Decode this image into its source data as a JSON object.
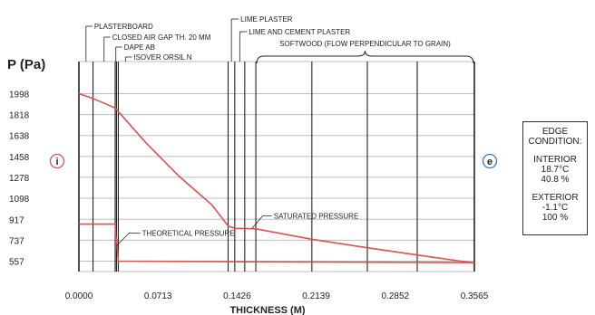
{
  "chart_data": {
    "type": "line",
    "ylabel": "P (Pa)",
    "xlabel": "THICKNESS (M)",
    "y_ticks": [
      "1998",
      "1818",
      "1638",
      "1458",
      "1278",
      "1098",
      "917",
      "737",
      "557"
    ],
    "x_ticks": [
      "0.0000",
      "0.0713",
      "0.1426",
      "0.2139",
      "0.2852",
      "0.3565"
    ],
    "xlim": [
      0,
      0.3565
    ],
    "ylim": [
      467,
      2088
    ],
    "grid": "horizontal",
    "layer_boundaries": [
      0,
      0.0127,
      0.0327,
      0.0339,
      0.0355,
      0.1345,
      0.1405,
      0.1495,
      0.1595,
      0.21,
      0.26,
      0.305,
      0.3565
    ],
    "layer_labels": [
      {
        "label": "PLASTERBOARD",
        "x": 0.0064
      },
      {
        "label": "CLOSED AIR GAP TH. 20 MM",
        "x": 0.0227
      },
      {
        "label": "DAPE AB",
        "x": 0.0333
      },
      {
        "label": "ISOVER ORSIL N",
        "x": 0.042
      }
    ],
    "top_labels": [
      {
        "label": "LIME PLASTER",
        "x": 0.1375
      },
      {
        "label": "LIME AND CEMENT PLASTER",
        "x": 0.145
      }
    ],
    "softwood_label": "SOFTWOOD (FLOW PERPENDICULAR TO GRAIN)",
    "softwood_range": [
      0.1595,
      0.3565
    ],
    "series": [
      {
        "name": "SATURATED PRESSURE",
        "color": "#d9534f",
        "points": [
          [
            0,
            1998
          ],
          [
            0.0127,
            1958
          ],
          [
            0.0327,
            1875
          ],
          [
            0.0339,
            1862
          ],
          [
            0.06,
            1580
          ],
          [
            0.09,
            1290
          ],
          [
            0.12,
            1040
          ],
          [
            0.1345,
            860
          ],
          [
            0.1405,
            838
          ],
          [
            0.1495,
            838
          ],
          [
            0.1595,
            835
          ],
          [
            0.21,
            745
          ],
          [
            0.26,
            672
          ],
          [
            0.305,
            610
          ],
          [
            0.3565,
            540
          ]
        ]
      },
      {
        "name": "THEORETICAL PRESSURE",
        "color": "#d9534f",
        "points": [
          [
            0,
            875
          ],
          [
            0.0127,
            875
          ],
          [
            0.0327,
            875
          ],
          [
            0.0335,
            710
          ],
          [
            0.0339,
            760
          ],
          [
            0.0355,
            557
          ],
          [
            0.1345,
            552
          ],
          [
            0.1595,
            550
          ],
          [
            0.3565,
            544
          ]
        ]
      }
    ],
    "annotations": [
      {
        "label": "SATURATED PRESSURE",
        "x": 0.156,
        "y": 838
      },
      {
        "label": "THEORETICAL PRESSURE",
        "x": 0.034,
        "y": 690
      }
    ],
    "side_markers": {
      "left": "i",
      "right": "e"
    }
  },
  "edge_condition": {
    "title_line1": "EDGE",
    "title_line2": "CONDITION:",
    "interior_label": "INTERIOR",
    "interior_temp": "18.7°C",
    "interior_rh": "40.8 %",
    "exterior_label": "EXTERIOR",
    "exterior_temp": "-1.1°C",
    "exterior_rh": "100 %"
  },
  "colors": {
    "curve": "#d9534f",
    "grid": "#bdbdbd",
    "boundary": "#222222",
    "interior_marker": "#d9534f",
    "exterior_marker": "#3b78c4"
  }
}
